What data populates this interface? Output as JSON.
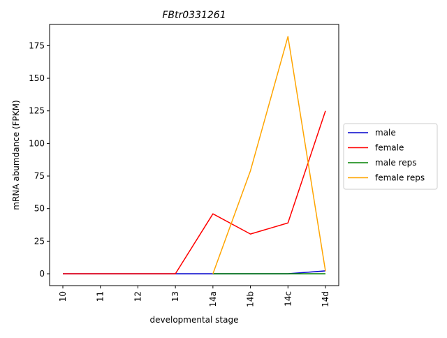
{
  "chart_data": {
    "type": "line",
    "title": "FBtr0331261",
    "xlabel": "developmental stage",
    "ylabel": "mRNA abumdance (FPKM)",
    "categories": [
      "10",
      "11",
      "12",
      "13",
      "14a",
      "14b",
      "14c",
      "14d"
    ],
    "yticks": [
      0,
      25,
      50,
      75,
      100,
      125,
      150,
      175
    ],
    "ylim": [
      -9.1,
      191.3
    ],
    "grid": false,
    "legend_position": "right-outside",
    "series": [
      {
        "name": "male",
        "color": "#0000cc",
        "values": [
          0,
          0,
          0,
          0,
          0,
          0,
          0,
          2.2
        ]
      },
      {
        "name": "female",
        "color": "#ff0000",
        "values": [
          0,
          0,
          0,
          0,
          46,
          30.5,
          39,
          125
        ]
      },
      {
        "name": "male reps",
        "color": "#008000",
        "values": [
          null,
          null,
          null,
          null,
          0,
          0,
          0,
          0
        ]
      },
      {
        "name": "female reps",
        "color": "#ffa500",
        "values": [
          null,
          null,
          null,
          null,
          0,
          79,
          182,
          2
        ]
      }
    ]
  }
}
